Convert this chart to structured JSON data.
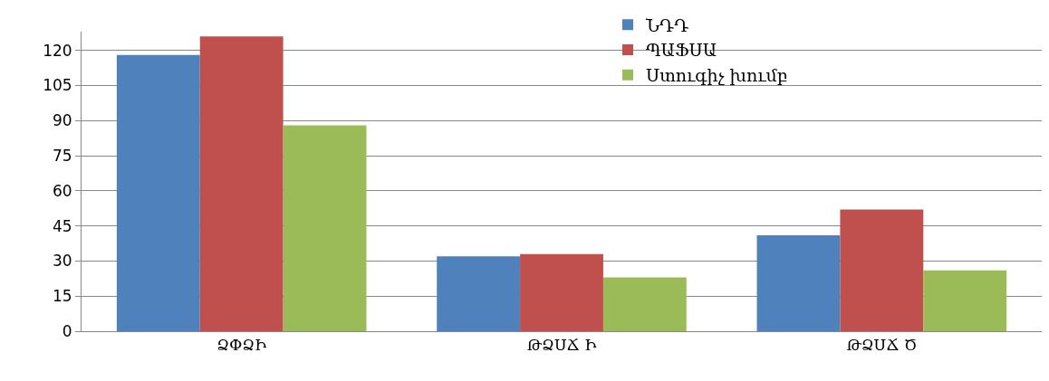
{
  "chart_data": {
    "type": "bar",
    "categories": [
      "ՁՓՁԻ",
      "ԹՁՍՃ Ի",
      "ԹՁՍՃ Ծ"
    ],
    "series": [
      {
        "name": "ՆԴԴ",
        "color": "#4f81bd",
        "values": [
          118,
          32,
          41
        ]
      },
      {
        "name": "ՊԱՖՍԱ",
        "color": "#c0504d",
        "values": [
          126,
          33,
          52
        ]
      },
      {
        "name": "Ստուգիչ խումբ",
        "color": "#9bbb59",
        "values": [
          88,
          23,
          26
        ]
      }
    ],
    "ylim": [
      0,
      128
    ],
    "yticks": [
      0,
      15,
      30,
      45,
      60,
      75,
      90,
      105,
      120
    ],
    "grid": "y",
    "legend": "top right"
  }
}
